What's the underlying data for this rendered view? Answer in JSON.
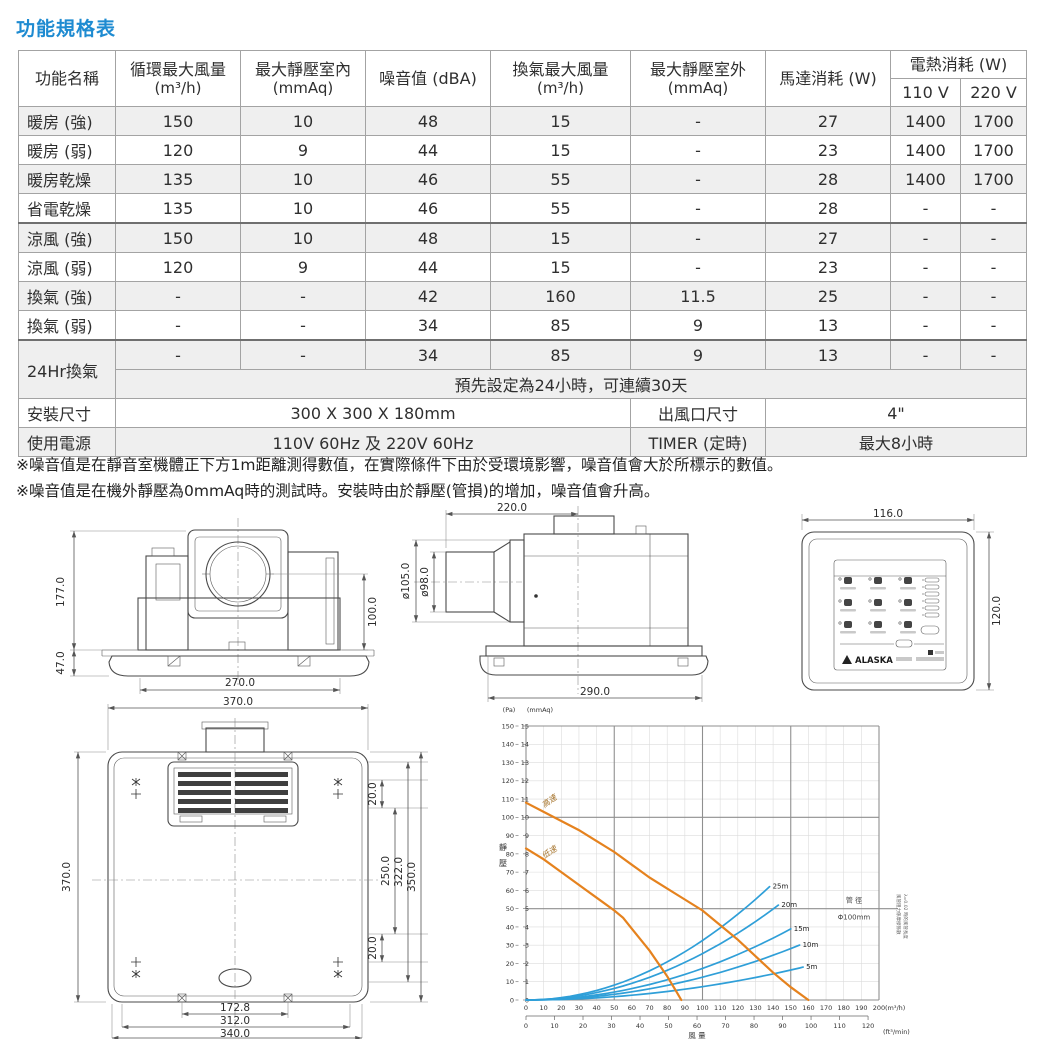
{
  "page_title": "功能規格表",
  "table": {
    "headers": {
      "function": "功能名稱",
      "circ_air": "循環最大風量",
      "circ_air_unit": "(m³/h)",
      "static_in": "最大靜壓室內",
      "static_in_unit": "(mmAq)",
      "noise": "噪音值 (dBA)",
      "vent_air": "換氣最大風量",
      "vent_air_unit": "(m³/h)",
      "static_out": "最大靜壓室外",
      "static_out_unit": "(mmAq)",
      "motor": "馬達消耗 (W)",
      "heater": "電熱消耗 (W)",
      "heater_110": "110 V",
      "heater_220": "220 V"
    },
    "rows": [
      {
        "name": "暖房 (強)",
        "values": [
          "150",
          "10",
          "48",
          "15",
          "-",
          "27",
          "1400",
          "1700"
        ]
      },
      {
        "name": "暖房 (弱)",
        "values": [
          "120",
          "9",
          "44",
          "15",
          "-",
          "23",
          "1400",
          "1700"
        ]
      },
      {
        "name": "暖房乾燥",
        "values": [
          "135",
          "10",
          "46",
          "55",
          "-",
          "28",
          "1400",
          "1700"
        ]
      },
      {
        "name": "省電乾燥",
        "values": [
          "135",
          "10",
          "46",
          "55",
          "-",
          "28",
          "-",
          "-"
        ]
      },
      {
        "name": "涼風 (強)",
        "values": [
          "150",
          "10",
          "48",
          "15",
          "-",
          "27",
          "-",
          "-"
        ]
      },
      {
        "name": "涼風 (弱)",
        "values": [
          "120",
          "9",
          "44",
          "15",
          "-",
          "23",
          "-",
          "-"
        ]
      },
      {
        "name": "換氣 (強)",
        "values": [
          "-",
          "-",
          "42",
          "160",
          "11.5",
          "25",
          "-",
          "-"
        ]
      },
      {
        "name": "換氣 (弱)",
        "values": [
          "-",
          "-",
          "34",
          "85",
          "9",
          "13",
          "-",
          "-"
        ]
      }
    ],
    "row_24hr": {
      "label": "24Hr換氣",
      "values": [
        "-",
        "-",
        "34",
        "85",
        "9",
        "13",
        "-",
        "-"
      ]
    },
    "preset_note": "預先設定為24小時，可連續30天",
    "install": {
      "label": "安裝尺寸",
      "size": "300 X 300 X 180mm",
      "outlet_label": "出風口尺寸",
      "outlet_value": "4\""
    },
    "power": {
      "label": "使用電源",
      "value": "110V 60Hz 及 220V 60Hz",
      "timer_label": "TIMER (定時)",
      "timer_value": "最大8小時"
    }
  },
  "notes": [
    "※噪音值是在靜音室機體正下方1m距離測得數值，在實際條件下由於受環境影響，噪音值會大於所標示的數值。",
    "※噪音值是在機外靜壓為0mmAq時的測試時。安裝時由於靜壓(管損)的增加，噪音值會升高。"
  ],
  "drawings": {
    "front_view": {
      "dims": {
        "body_height": "177.0",
        "panel_height": "47.0",
        "duct_offset": "100.0",
        "inner_width": "270.0"
      }
    },
    "side_view": {
      "dims": {
        "length": "220.0",
        "duct_outer": "ø105.0",
        "duct_inner": "ø98.0",
        "body_width": "290.0"
      }
    },
    "control_panel": {
      "brand": "ALASKA",
      "dims": {
        "width": "116.0",
        "height": "120.0"
      }
    },
    "bottom_view": {
      "dims": {
        "width": "370.0",
        "height": "370.0",
        "gap_top": "20.0",
        "inner_span": "250.0",
        "span_322": "322.0",
        "span_350": "350.0",
        "gap_bottom": "20.0",
        "mount_width": "172.8",
        "span_312": "312.0",
        "span_340": "340.0"
      }
    }
  },
  "chart_data": {
    "type": "line",
    "title": "",
    "ylabel": "靜壓",
    "xlabel": "風 量",
    "y_unit_primary": "(Pa)",
    "y_unit_secondary": "(mmAq)",
    "x_unit_primary": "(m³/h)",
    "x_unit_secondary": "(ft³/min)",
    "y_range_pa": [
      0,
      150
    ],
    "y_step_pa": 10,
    "y_range_mmaq": [
      0,
      15
    ],
    "y_step_mmaq": 1,
    "x_range": [
      0,
      200
    ],
    "x_step": 10,
    "x_secondary_range": [
      0,
      120
    ],
    "x_secondary_step": 10,
    "x_secondary_factor": 1.615,
    "grid_major_x": 50,
    "grid_major_pa": 50,
    "fan_curves": [
      {
        "name": "高速",
        "points": [
          [
            0,
            108
          ],
          [
            10,
            103
          ],
          [
            20,
            98
          ],
          [
            30,
            93
          ],
          [
            40,
            87
          ],
          [
            50,
            81
          ],
          [
            60,
            74
          ],
          [
            70,
            67
          ],
          [
            80,
            61
          ],
          [
            90,
            55
          ],
          [
            100,
            49
          ],
          [
            110,
            41
          ],
          [
            120,
            33
          ],
          [
            130,
            24
          ],
          [
            140,
            15
          ],
          [
            150,
            7
          ],
          [
            160,
            0
          ]
        ]
      },
      {
        "name": "低速",
        "points": [
          [
            0,
            83
          ],
          [
            10,
            77
          ],
          [
            20,
            70
          ],
          [
            30,
            63
          ],
          [
            40,
            56
          ],
          [
            50,
            49
          ],
          [
            55,
            45
          ],
          [
            60,
            39
          ],
          [
            65,
            33
          ],
          [
            70,
            27
          ],
          [
            75,
            20
          ],
          [
            80,
            13
          ],
          [
            85,
            5
          ],
          [
            88,
            0
          ]
        ]
      }
    ],
    "duct_curves": [
      {
        "label": "25m",
        "k": 0.00326,
        "q_end": 138
      },
      {
        "label": "20m",
        "k": 0.00254,
        "q_end": 143
      },
      {
        "label": "15m",
        "k": 0.00173,
        "q_end": 150
      },
      {
        "label": "10m",
        "k": 0.00125,
        "q_end": 155
      },
      {
        "label": "5m",
        "k": 0.00073,
        "q_end": 157
      }
    ],
    "pipe_note_line1": "管 徑",
    "pipe_note_line2": "Φ100mm",
    "side_note_line1": "風管阻力係摩擦係數",
    "side_note_line2": "λ=0.02 時的風管長度",
    "colors": {
      "fan": "#e5821e",
      "duct": "#2f9fd8",
      "grid": "#dcdcdc",
      "grid_dark": "#8f8f8f",
      "curve_label": "#a6742c"
    }
  }
}
